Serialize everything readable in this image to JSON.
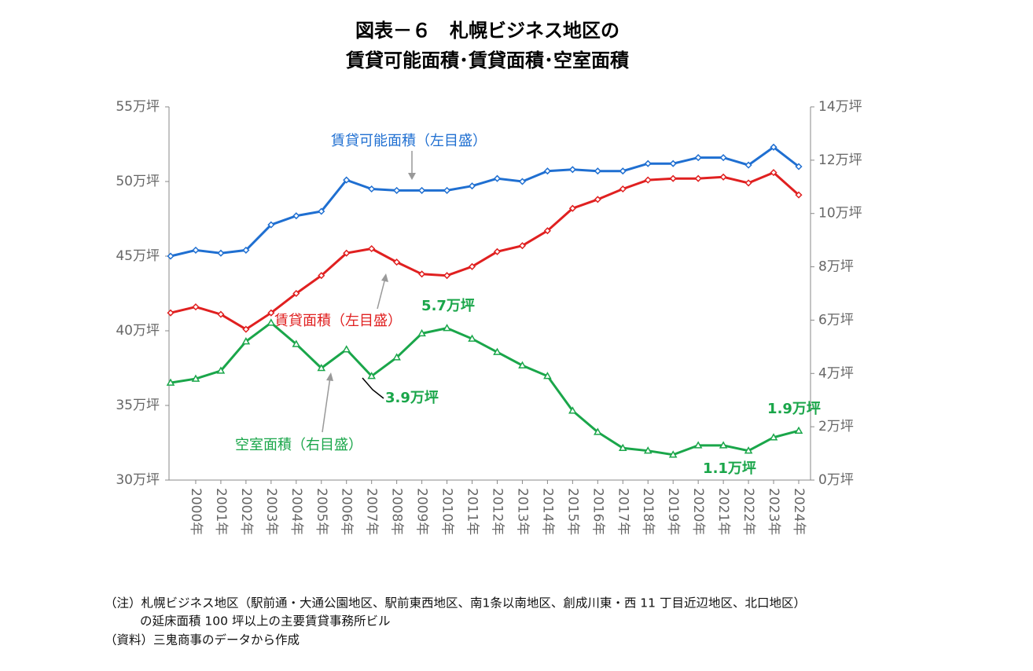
{
  "chart_data": {
    "type": "line",
    "title": [
      "図表－６　札幌ビジネス地区の",
      "賃貸可能面積･賃貸面積･空室面積"
    ],
    "categories": [
      null,
      "2000年",
      "2001年",
      "2002年",
      "2003年",
      "2004年",
      "2005年",
      "2006年",
      "2007年",
      "2008年",
      "2009年",
      "2010年",
      "2011年",
      "2012年",
      "2013年",
      "2014年",
      "2015年",
      "2016年",
      "2017年",
      "2018年",
      "2019年",
      "2020年",
      "2021年",
      "2022年",
      "2023年",
      "2024年"
    ],
    "series": [
      {
        "name": "賃貸可能面積（左目盛）",
        "color": "#1f6fd1",
        "axis": "y",
        "marker": "diamond",
        "values": [
          45.0,
          45.4,
          45.2,
          45.4,
          47.1,
          47.7,
          48.0,
          50.1,
          49.5,
          49.4,
          49.4,
          49.4,
          49.7,
          50.2,
          50.0,
          50.7,
          50.8,
          50.7,
          50.7,
          51.2,
          51.2,
          51.6,
          51.6,
          51.1,
          52.3,
          51.0
        ]
      },
      {
        "name": "賃貸面積（左目盛）",
        "color": "#e02020",
        "axis": "y",
        "marker": "diamond",
        "values": [
          41.2,
          41.6,
          41.1,
          40.1,
          41.2,
          42.5,
          43.7,
          45.2,
          45.5,
          44.6,
          43.8,
          43.7,
          44.3,
          45.3,
          45.7,
          46.7,
          48.2,
          48.8,
          49.5,
          50.1,
          50.2,
          50.2,
          50.3,
          49.9,
          50.6,
          49.1
        ]
      },
      {
        "name": "空室面積（右目盛）",
        "color": "#1aa64a",
        "axis": "y2",
        "marker": "triangle",
        "values": [
          3.65,
          3.8,
          4.1,
          5.2,
          5.9,
          5.1,
          4.2,
          4.9,
          3.9,
          4.6,
          5.5,
          5.7,
          5.3,
          4.8,
          4.3,
          3.9,
          2.6,
          1.8,
          1.2,
          1.1,
          0.95,
          1.3,
          1.3,
          1.1,
          1.6,
          1.85
        ]
      }
    ],
    "annotations": [
      "5.7万坪",
      "3.9万坪",
      "1.1万坪",
      "1.9万坪"
    ],
    "ylim": [
      30,
      55
    ],
    "yticks": [
      {
        "value": 30,
        "label": "30万坪"
      },
      {
        "value": 35,
        "label": "35万坪"
      },
      {
        "value": 40,
        "label": "40万坪"
      },
      {
        "value": 45,
        "label": "45万坪"
      },
      {
        "value": 50,
        "label": "50万坪"
      },
      {
        "value": 55,
        "label": "55万坪"
      }
    ],
    "y2lim": [
      0,
      14
    ],
    "y2ticks": [
      {
        "value": 0,
        "label": "0万坪"
      },
      {
        "value": 2,
        "label": "2万坪"
      },
      {
        "value": 4,
        "label": "4万坪"
      },
      {
        "value": 6,
        "label": "6万坪"
      },
      {
        "value": 8,
        "label": "8万坪"
      },
      {
        "value": 10,
        "label": "10万坪"
      },
      {
        "value": 12,
        "label": "12万坪"
      },
      {
        "value": 14,
        "label": "14万坪"
      }
    ],
    "grid": false
  },
  "notes": [
    "（注）札幌ビジネス地区（駅前通・大通公園地区、駅前東西地区、南1条以南地区、創成川東・西 11 丁目近辺地区、北口地区）",
    "の延床面積 100 坪以上の主要賃貸事務所ビル",
    "（資料）三鬼商事のデータから作成"
  ]
}
